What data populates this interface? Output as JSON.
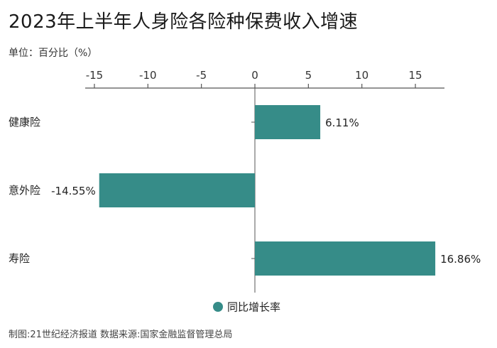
{
  "title": "2023年上半年人身险各险种保费收入增速",
  "unit_label": "单位：百分比（%）",
  "footer": "制图:21世纪经济报道 数据来源:国家金融监督管理总局",
  "colors": {
    "bar": "#368c88",
    "axis": "#555555"
  },
  "chart_data": {
    "type": "bar",
    "orientation": "horizontal",
    "categories": [
      "健康险",
      "意外险",
      "寿险"
    ],
    "series": [
      {
        "name": "同比增长率",
        "values": [
          6.11,
          -14.55,
          16.86
        ]
      }
    ],
    "value_labels": [
      "6.11%",
      "-14.55%",
      "16.86%"
    ],
    "xlim": [
      -15.5,
      17.8
    ],
    "xticks": [
      -15,
      -10,
      -5,
      0,
      5,
      10,
      15
    ],
    "xtick_labels": [
      "-15",
      "-10",
      "-5",
      "0",
      "5",
      "10",
      "15"
    ],
    "axis_position": "top",
    "grid": false,
    "legend": "bottom-center"
  }
}
